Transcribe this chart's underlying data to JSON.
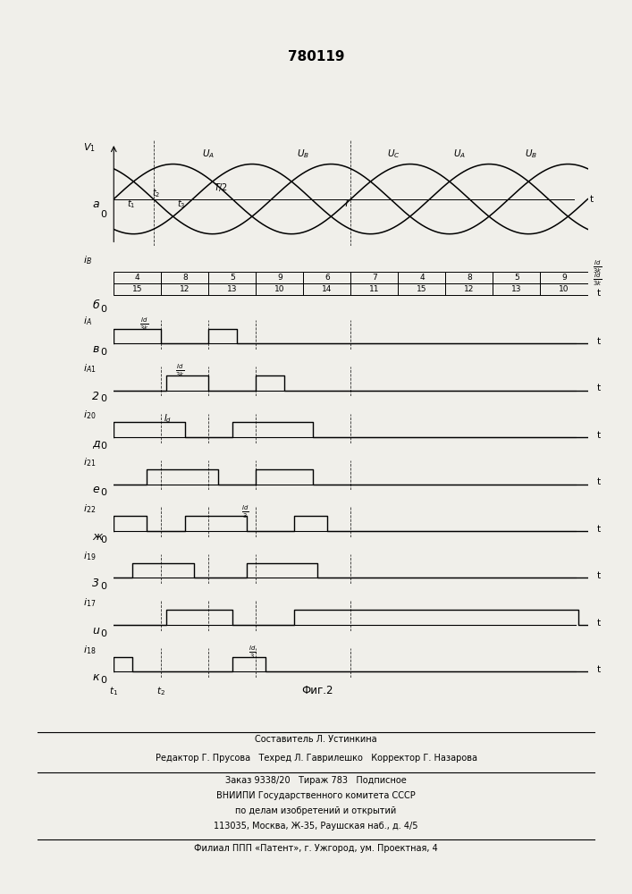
{
  "title": "780119",
  "background_color": "#f0efea",
  "fig_width": 7.07,
  "fig_height": 10.0,
  "dpi": 100,
  "sine_period": 1.0,
  "num_periods": 2.0,
  "row_heights": [
    3.0,
    1.2,
    1.0,
    1.0,
    1.0,
    1.0,
    1.0,
    1.0,
    1.0,
    1.0
  ],
  "numbers_top": [
    4,
    8,
    5,
    9,
    6,
    7,
    4,
    8,
    5,
    9
  ],
  "numbers_bot": [
    15,
    12,
    13,
    10,
    14,
    11,
    15,
    12,
    13,
    10
  ],
  "footer_text": [
    "Составитель Л. Устинкина",
    "Редактор Г. Прусова   Техред Л. Гаврилешко   Корректор Г. Назарова",
    "Заказ 9338/20   Тираж 783   Подписное",
    "ВНИИПИ Государственного комитета СССР",
    "по делам изобретений и открытий",
    "113035, Москва, Ж-35, Раушская наб., д. 4/5",
    "Филиал ППП «Патент», г. Ужгород, ум. Проектная, 4"
  ]
}
